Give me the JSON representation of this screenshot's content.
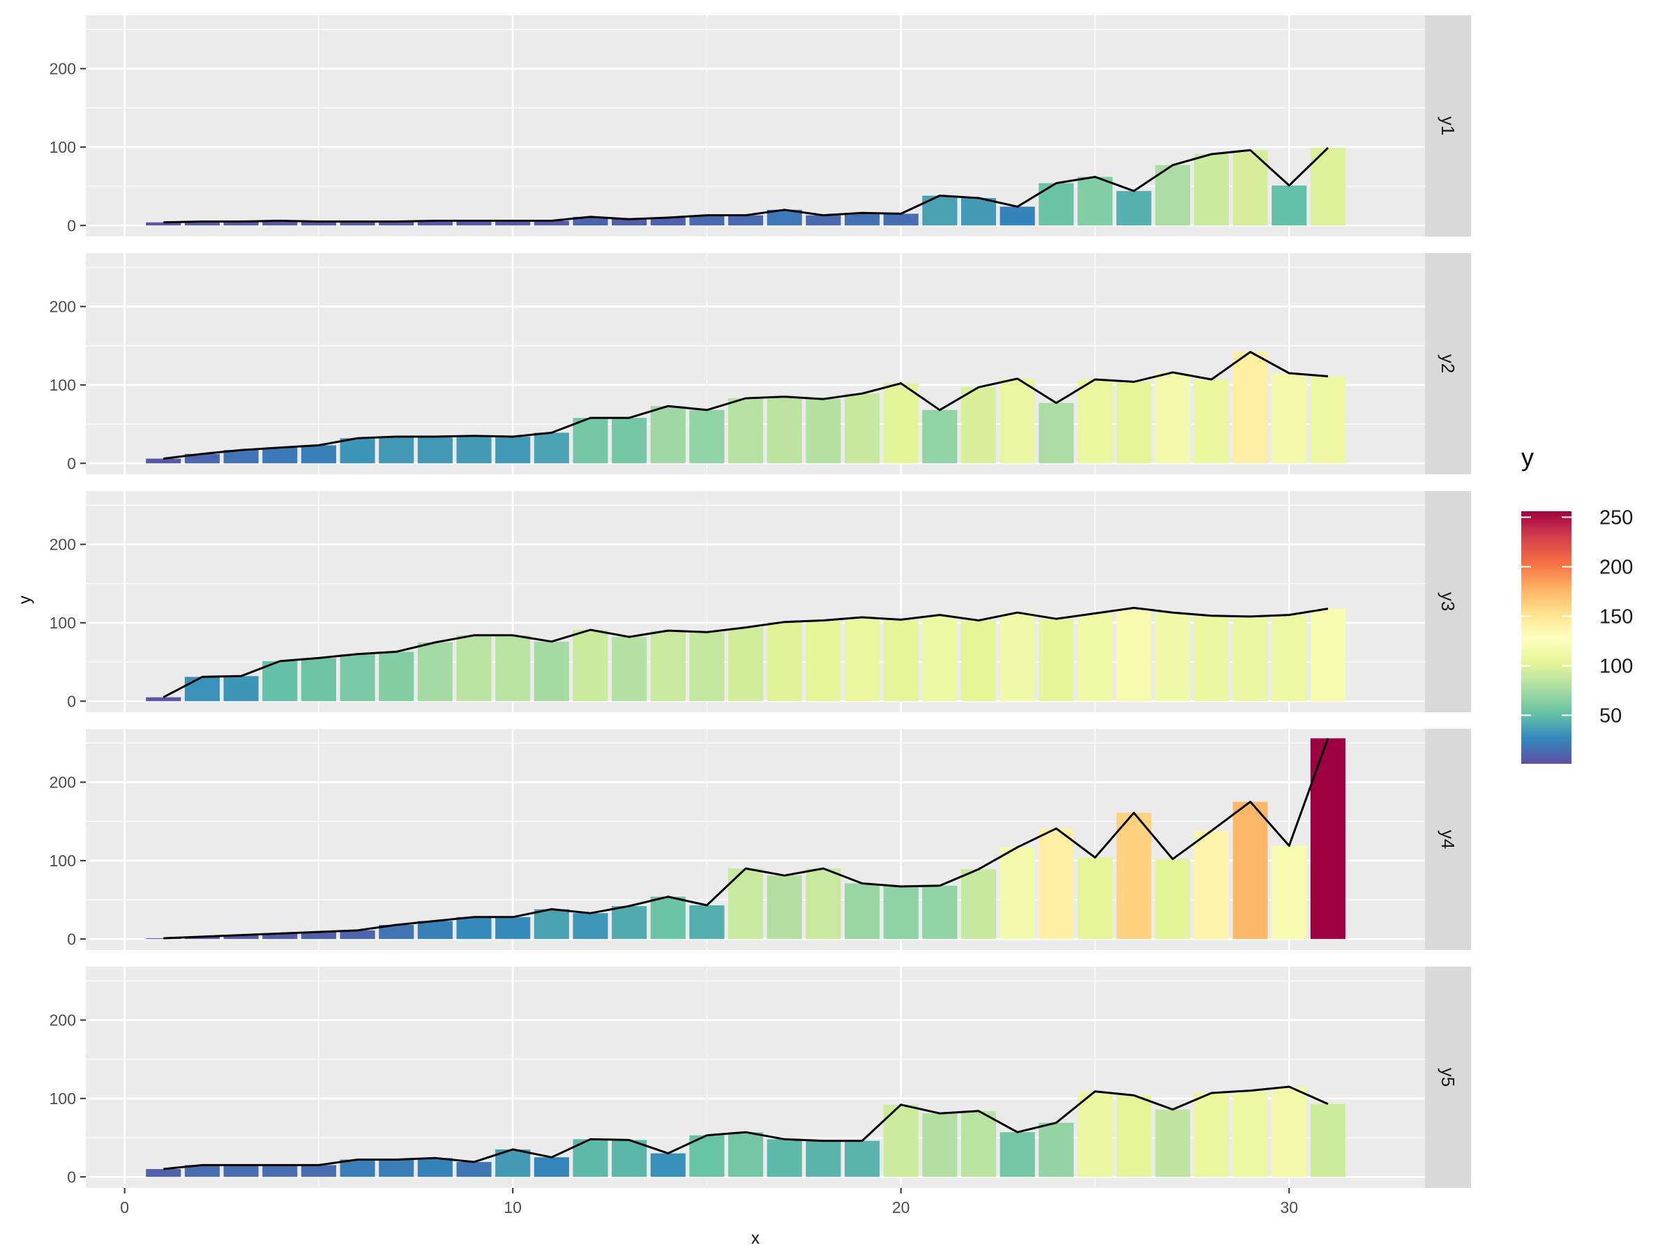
{
  "chart_data": {
    "type": "bar",
    "facet_by": "series",
    "xlabel": "x",
    "ylabel": "y",
    "xlim": [
      -1,
      33.5
    ],
    "ylim": [
      -14,
      268
    ],
    "x_ticks": [
      0,
      10,
      20,
      30
    ],
    "y_ticks": [
      0,
      100,
      200
    ],
    "x": [
      1,
      2,
      3,
      4,
      5,
      6,
      7,
      8,
      9,
      10,
      11,
      12,
      13,
      14,
      15,
      16,
      17,
      18,
      19,
      20,
      21,
      22,
      23,
      24,
      25,
      26,
      27,
      28,
      29,
      30,
      31
    ],
    "series": [
      {
        "name": "y1",
        "values": [
          4,
          5,
          5,
          6,
          5,
          5,
          5,
          6,
          6,
          6,
          6,
          11,
          8,
          10,
          13,
          13,
          20,
          13,
          16,
          15,
          38,
          35,
          24,
          54,
          62,
          44,
          77,
          91,
          96,
          51,
          99
        ]
      },
      {
        "name": "y2",
        "values": [
          6,
          12,
          17,
          20,
          23,
          32,
          34,
          34,
          35,
          34,
          39,
          58,
          58,
          73,
          68,
          83,
          85,
          82,
          89,
          102,
          68,
          97,
          108,
          77,
          107,
          104,
          116,
          107,
          142,
          115,
          111
        ]
      },
      {
        "name": "y3",
        "values": [
          5,
          31,
          32,
          51,
          55,
          60,
          63,
          75,
          84,
          84,
          76,
          91,
          82,
          90,
          88,
          94,
          101,
          103,
          107,
          104,
          110,
          103,
          113,
          105,
          112,
          119,
          113,
          109,
          108,
          110,
          118
        ]
      },
      {
        "name": "y4",
        "values": [
          1,
          3,
          5,
          7,
          9,
          11,
          18,
          23,
          28,
          28,
          38,
          33,
          42,
          54,
          43,
          90,
          81,
          90,
          71,
          67,
          68,
          89,
          117,
          141,
          104,
          161,
          102,
          138,
          175,
          119,
          256
        ]
      },
      {
        "name": "y5",
        "values": [
          10,
          15,
          15,
          15,
          15,
          22,
          22,
          24,
          19,
          35,
          25,
          48,
          47,
          30,
          53,
          57,
          48,
          46,
          46,
          92,
          81,
          84,
          57,
          69,
          109,
          104,
          86,
          107,
          110,
          115,
          93
        ]
      }
    ],
    "legend": {
      "title": "y",
      "position": "right",
      "ticks": [
        50,
        100,
        150,
        200,
        250
      ],
      "range": [
        1,
        256
      ]
    },
    "colors": {
      "palette": "Spectral",
      "stops": [
        "#5E4FA2",
        "#3288BD",
        "#66C2A5",
        "#ABDDA4",
        "#E6F598",
        "#FFFFBF",
        "#FEE08B",
        "#FDAE61",
        "#F46D43",
        "#D53E4F",
        "#9E0142"
      ],
      "line": "#000000",
      "panel_background": "#EBEBEB",
      "grid": "#FFFFFF",
      "strip_background": "#D9D9D9"
    }
  }
}
